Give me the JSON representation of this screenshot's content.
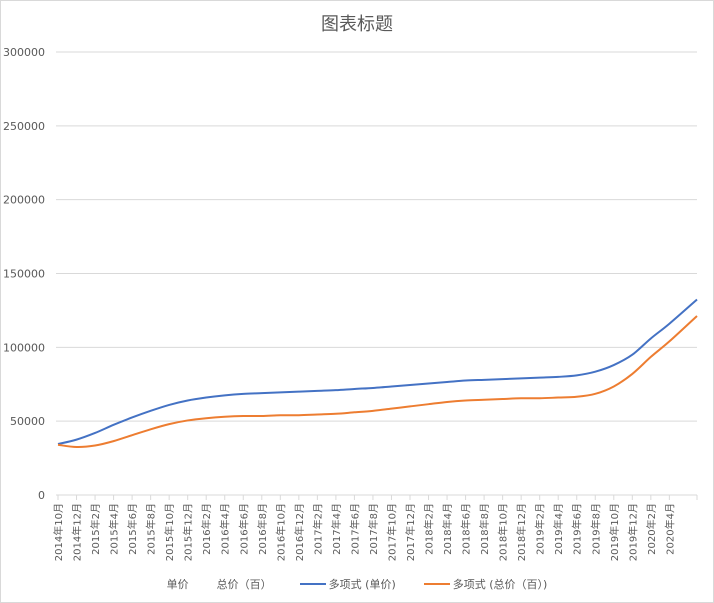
{
  "chart_data": {
    "type": "line",
    "title": "图表标题",
    "xlabel": "",
    "ylabel": "",
    "ylim": [
      0,
      300000
    ],
    "yticks": [
      0,
      50000,
      100000,
      150000,
      200000,
      250000,
      300000
    ],
    "grid": true,
    "legend_position": "bottom",
    "categories": [
      "2014年10月",
      "2014年12月",
      "2015年2月",
      "2015年4月",
      "2015年6月",
      "2015年8月",
      "2015年10月",
      "2015年12月",
      "2016年2月",
      "2016年4月",
      "2016年6月",
      "2016年8月",
      "2016年10月",
      "2016年12月",
      "2017年2月",
      "2017年4月",
      "2017年6月",
      "2017年8月",
      "2017年10月",
      "2017年12月",
      "2018年2月",
      "2018年4月",
      "2018年6月",
      "2018年8月",
      "2018年10月",
      "2018年12月",
      "2019年2月",
      "2019年4月",
      "2019年6月",
      "2019年8月",
      "2019年10月",
      "2019年12月",
      "2020年2月",
      "2020年4月"
    ],
    "series": [
      {
        "name": "单价",
        "color": "#4472c4",
        "visible": false,
        "values": []
      },
      {
        "name": "总价（百）",
        "color": "#ed7d31",
        "visible": false,
        "values": []
      },
      {
        "name": "多项式 (单价)",
        "color": "#4472c4",
        "type": "trendline",
        "values": [
          34500,
          37500,
          42000,
          47500,
          52500,
          57000,
          61000,
          64000,
          66000,
          67500,
          68500,
          69000,
          69500,
          70000,
          70500,
          71000,
          71800,
          72500,
          73500,
          74500,
          75500,
          76500,
          77500,
          78000,
          78500,
          79000,
          79500,
          80000,
          81000,
          83500,
          88000,
          95000,
          106000,
          116000
        ]
      },
      {
        "name": "多项式 (总价（百）)",
        "color": "#ed7d31",
        "type": "trendline",
        "values": [
          34000,
          32500,
          33500,
          36500,
          40500,
          44500,
          48000,
          50500,
          52000,
          53000,
          53500,
          53500,
          54000,
          54000,
          54500,
          55000,
          56000,
          57000,
          58500,
          60000,
          61500,
          63000,
          64000,
          64500,
          65000,
          65500,
          65500,
          66000,
          66500,
          68500,
          73500,
          82000,
          93500,
          104000
        ]
      }
    ]
  },
  "legend": {
    "items": [
      {
        "label": "单价",
        "color": "",
        "line": false
      },
      {
        "label": "总价（百）",
        "color": "",
        "line": false
      },
      {
        "label": "多项式 (单价)",
        "color": "#4472c4",
        "line": true
      },
      {
        "label": "多项式 (总价（百）)",
        "color": "#ed7d31",
        "line": true
      }
    ]
  }
}
